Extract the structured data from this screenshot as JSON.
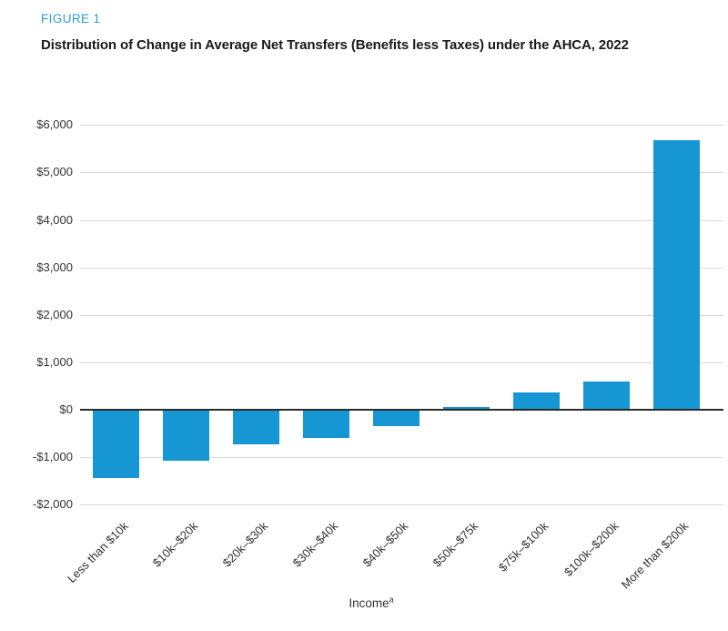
{
  "figure_label": "FIGURE 1",
  "title": "Distribution of Change in Average Net Transfers (Benefits less Taxes) under the AHCA, 2022",
  "colors": {
    "figure_label_blue": "#2d9fd9",
    "bar_blue": "#1696d2",
    "title_black": "#1a1a1a",
    "axis_label_gray": "#333333",
    "gridline_gray": "#d9d9d9",
    "zero_line_dark": "#2b2b2b"
  },
  "chart_data": {
    "type": "bar",
    "title": "Distribution of Change in Average Net Transfers (Benefits less Taxes) under the AHCA, 2022",
    "categories": [
      "Less than $10k",
      "$10k–$20k",
      "$20k–$30k",
      "$30k–$40k",
      "$40k–$50k",
      "$50k–$75k",
      "$75k–$100k",
      "$100k–$200k",
      "More than $200k"
    ],
    "values": [
      -1440,
      -1080,
      -730,
      -590,
      -350,
      60,
      360,
      600,
      5670
    ],
    "xlabel": "Income",
    "xlabel_superscript": "a",
    "ylabel": "",
    "ylim": [
      -2000,
      6000
    ],
    "ytick_interval": 1000,
    "yticks": [
      {
        "value": 6000,
        "label": "$6,000"
      },
      {
        "value": 5000,
        "label": "$5,000"
      },
      {
        "value": 4000,
        "label": "$4,000"
      },
      {
        "value": 3000,
        "label": "$3,000"
      },
      {
        "value": 2000,
        "label": "$2,000"
      },
      {
        "value": 1000,
        "label": "$1,000"
      },
      {
        "value": 0,
        "label": "$0"
      },
      {
        "value": -1000,
        "label": "-$1,000"
      },
      {
        "value": -2000,
        "label": "-$2,000"
      }
    ],
    "grid": true,
    "legend": false,
    "bar_color": "#1696d2"
  }
}
